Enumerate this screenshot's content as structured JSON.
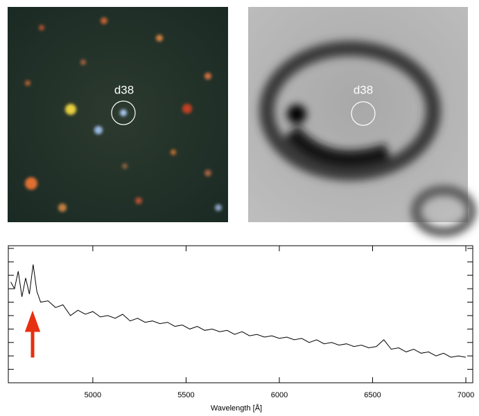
{
  "panels": {
    "left_label": "d38",
    "right_label": "d38"
  },
  "chart_data": {
    "type": "line",
    "x_label": "Wavelength [Å]",
    "x": [
      4560,
      4580,
      4600,
      4620,
      4640,
      4660,
      4680,
      4700,
      4720,
      4760,
      4800,
      4840,
      4880,
      4920,
      4960,
      5000,
      5040,
      5080,
      5120,
      5160,
      5200,
      5240,
      5280,
      5320,
      5360,
      5400,
      5440,
      5480,
      5520,
      5560,
      5600,
      5640,
      5680,
      5720,
      5760,
      5800,
      5840,
      5880,
      5920,
      5960,
      6000,
      6040,
      6080,
      6120,
      6160,
      6200,
      6240,
      6280,
      6320,
      6360,
      6400,
      6440,
      6480,
      6520,
      6560,
      6600,
      6640,
      6680,
      6720,
      6760,
      6800,
      6840,
      6880,
      6920,
      6960,
      7000
    ],
    "series": [
      {
        "color": "#000000",
        "values": [
          7.5,
          7.0,
          8.3,
          6.4,
          7.8,
          6.6,
          8.8,
          6.8,
          6.0,
          6.1,
          5.6,
          5.8,
          5.0,
          5.4,
          5.1,
          5.3,
          4.9,
          5.0,
          4.8,
          5.1,
          4.6,
          4.8,
          4.5,
          4.6,
          4.4,
          4.5,
          4.2,
          4.3,
          4.0,
          4.2,
          3.9,
          4.0,
          3.8,
          3.9,
          3.6,
          3.8,
          3.5,
          3.6,
          3.4,
          3.5,
          3.3,
          3.4,
          3.2,
          3.3,
          3.0,
          3.2,
          2.9,
          3.0,
          2.8,
          2.9,
          2.7,
          2.8,
          2.6,
          2.7,
          3.2,
          2.5,
          2.6,
          2.3,
          2.5,
          2.2,
          2.3,
          2.0,
          2.2,
          1.9,
          2.0,
          1.9
        ]
      }
    ],
    "xlim": [
      4547,
      7037
    ],
    "xticks": [
      5000,
      5500,
      6000,
      6500,
      7000
    ],
    "ylim": [
      0,
      10.2
    ],
    "yticks": [
      1,
      2,
      3,
      4,
      5,
      6,
      7,
      8,
      9,
      10
    ]
  }
}
